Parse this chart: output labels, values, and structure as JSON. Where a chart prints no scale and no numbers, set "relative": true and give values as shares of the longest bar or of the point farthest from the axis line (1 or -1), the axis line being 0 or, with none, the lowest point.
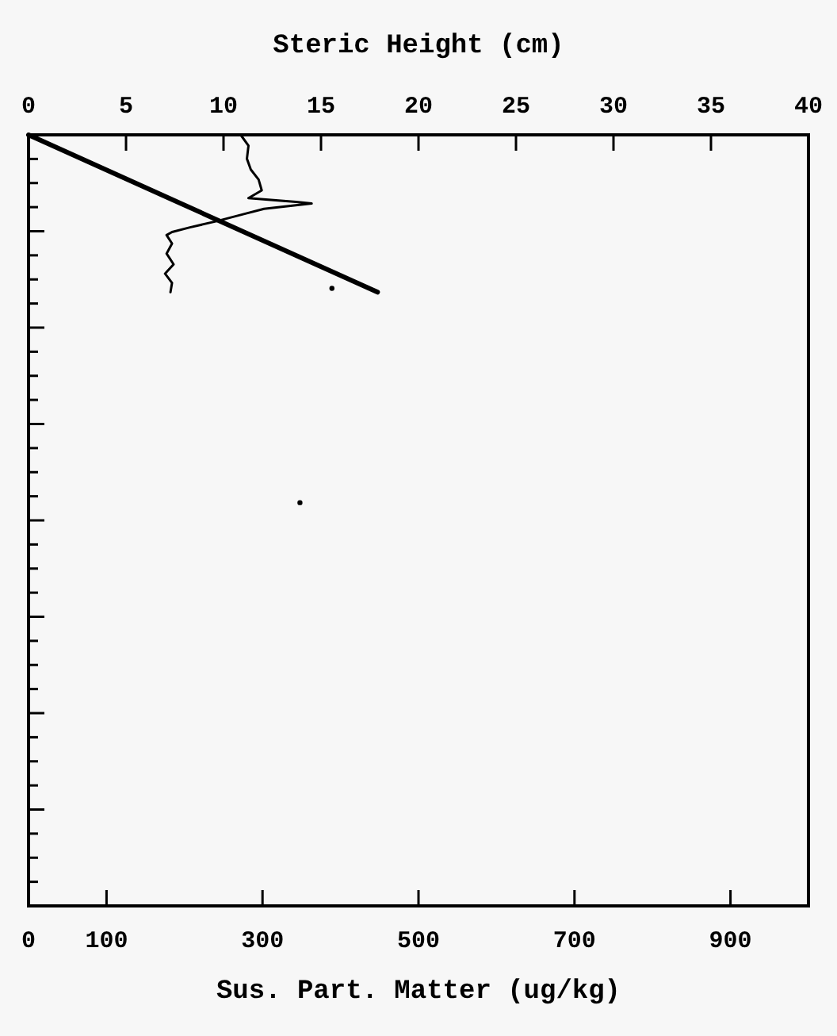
{
  "chart_data": {
    "type": "line",
    "xlabel": "Sus. Part. Matter (ug/kg)",
    "x2label": "Steric Height (cm)",
    "relative": true,
    "xlim": [
      0,
      1000
    ],
    "xticks": [
      0,
      100,
      300,
      500,
      700,
      900
    ],
    "x2lim": [
      0,
      40
    ],
    "x2ticks": [
      0,
      5,
      10,
      15,
      20,
      25,
      30,
      35,
      40
    ],
    "grid": false,
    "marker": "none",
    "line_style": "solid",
    "series": [
      {
        "color": "#000000",
        "axis": "x2",
        "x": [
          0,
          17.9
        ],
        "values": [
          1.0,
          0.796
        ]
      },
      {
        "color": "#000000",
        "x": [
          272,
          282,
          280,
          285,
          295,
          299,
          282,
          343,
          363,
          302,
          275,
          241,
          207,
          184,
          177,
          184,
          177,
          186,
          175,
          184,
          182
        ],
        "values": [
          1.0,
          0.986,
          0.969,
          0.955,
          0.942,
          0.928,
          0.918,
          0.913,
          0.911,
          0.904,
          0.897,
          0.888,
          0.88,
          0.874,
          0.87,
          0.859,
          0.846,
          0.832,
          0.82,
          0.808,
          0.796
        ]
      },
      {
        "type": "scatter",
        "marker": "circle",
        "color": "#000000",
        "x": [
          389,
          348
        ],
        "values": [
          0.801,
          0.523
        ]
      }
    ]
  }
}
